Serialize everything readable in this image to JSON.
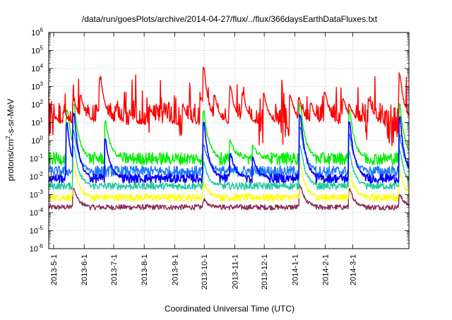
{
  "chart_data": {
    "type": "line",
    "title": "/data/run/goesPlots/archive/2014-04-27/flux/../flux/366daysEarthDataFluxes.txt",
    "xlabel": "Coordinated Universal Time (UTC)",
    "ylabel": "protons/cm2-s-sr-MeV",
    "ylabel_parts": [
      "protons/cm",
      "2",
      "-s-sr-MeV"
    ],
    "yscale": "log",
    "ylim": [
      1e-06,
      1000000.0
    ],
    "y_ticks": [
      {
        "base": "10",
        "exp": "-6",
        "value": 1e-06
      },
      {
        "base": "10",
        "exp": "-5",
        "value": 1e-05
      },
      {
        "base": "10",
        "exp": "-4",
        "value": 0.0001
      },
      {
        "base": "10",
        "exp": "-3",
        "value": 0.001
      },
      {
        "base": "10",
        "exp": "-2",
        "value": 0.01
      },
      {
        "base": "10",
        "exp": "-1",
        "value": 0.1
      },
      {
        "base": "10",
        "exp": "0",
        "value": 1
      },
      {
        "base": "10",
        "exp": "1",
        "value": 10
      },
      {
        "base": "10",
        "exp": "2",
        "value": 100
      },
      {
        "base": "10",
        "exp": "3",
        "value": 1000
      },
      {
        "base": "10",
        "exp": "4",
        "value": 10000
      },
      {
        "base": "10",
        "exp": "5",
        "value": 100000
      },
      {
        "base": "10",
        "exp": "6",
        "value": 1000000
      }
    ],
    "xlim": [
      "2013-04-26",
      "2014-04-27"
    ],
    "x_ticks": [
      {
        "label": "2013-5-1",
        "date": "2013-05-01"
      },
      {
        "label": "2013-6-1",
        "date": "2013-06-01"
      },
      {
        "label": "2013-7-1",
        "date": "2013-07-01"
      },
      {
        "label": "2013-8-1",
        "date": "2013-08-01"
      },
      {
        "label": "2013-9-1",
        "date": "2013-09-01"
      },
      {
        "label": "2013-10-1",
        "date": "2013-10-01"
      },
      {
        "label": "2013-11-1",
        "date": "2013-11-01"
      },
      {
        "label": "2013-12-1",
        "date": "2013-12-01"
      },
      {
        "label": "2014-1-1",
        "date": "2014-01-01"
      },
      {
        "label": "2014-2-1",
        "date": "2014-02-01"
      },
      {
        "label": "2014-3-1",
        "date": "2014-03-01"
      }
    ],
    "grid": true,
    "legend": "none",
    "series": [
      {
        "color": "#ff0000",
        "baseline": 8,
        "x": [
          "2013-05-02",
          "2013-05-12",
          "2013-05-22",
          "2013-05-29",
          "2013-06-05",
          "2013-06-18",
          "2013-06-23",
          "2013-07-04",
          "2013-07-18",
          "2013-08-08",
          "2013-08-21",
          "2013-09-10",
          "2013-09-29",
          "2013-10-01",
          "2013-10-12",
          "2013-10-28",
          "2013-11-10",
          "2013-12-01",
          "2013-12-28",
          "2014-01-06",
          "2014-01-18",
          "2014-02-01",
          "2014-02-20",
          "2014-02-26",
          "2014-03-18",
          "2014-04-18",
          "2014-04-25"
        ],
        "values": [
          20,
          40,
          200,
          300,
          30,
          3000,
          50,
          40,
          30,
          50,
          40,
          80,
          200,
          10000,
          300,
          1000,
          400,
          400,
          300,
          200,
          100,
          500,
          200,
          100,
          200,
          5000,
          30
        ]
      },
      {
        "color": "#00ee00",
        "baseline": 0.1,
        "x": [
          "2013-05-15",
          "2013-05-22",
          "2013-06-23",
          "2013-10-01",
          "2013-10-28",
          "2013-11-20",
          "2014-01-07",
          "2014-02-26",
          "2014-04-18"
        ],
        "values": [
          50,
          100,
          10,
          40,
          1,
          0.5,
          100,
          50,
          100
        ]
      },
      {
        "color": "#0000ff",
        "baseline": 0.008,
        "x": [
          "2013-05-15",
          "2013-05-22",
          "2013-06-23",
          "2013-10-01",
          "2013-10-28",
          "2013-11-20",
          "2014-01-07",
          "2014-02-26",
          "2014-04-18"
        ],
        "values": [
          8,
          30,
          1,
          10,
          0.2,
          0.1,
          30,
          10,
          20
        ]
      },
      {
        "color": "#1e78ff",
        "baseline": 0.02,
        "x": [
          "2013-05-22",
          "2013-10-01",
          "2014-01-07",
          "2014-02-26",
          "2014-04-18"
        ],
        "values": [
          3,
          0.5,
          5,
          2,
          2
        ]
      },
      {
        "color": "#20c8a0",
        "baseline": 0.003,
        "x": [
          "2013-05-22",
          "2013-10-01",
          "2014-01-07",
          "2014-02-26",
          "2014-04-18"
        ],
        "values": [
          0.5,
          0.05,
          0.5,
          0.2,
          0.3
        ]
      },
      {
        "color": "#ffff00",
        "baseline": 0.0007,
        "x": [
          "2013-05-22",
          "2013-10-01",
          "2014-01-07",
          "2014-02-26",
          "2014-04-18"
        ],
        "values": [
          0.05,
          0.005,
          0.05,
          0.02,
          0.02
        ]
      },
      {
        "color": "#8c2a5a",
        "baseline": 0.0002,
        "x": [
          "2013-05-22",
          "2013-10-01",
          "2014-01-07",
          "2014-02-26",
          "2014-04-18"
        ],
        "values": [
          0.002,
          0.0005,
          0.003,
          0.002,
          0.001
        ]
      }
    ]
  }
}
